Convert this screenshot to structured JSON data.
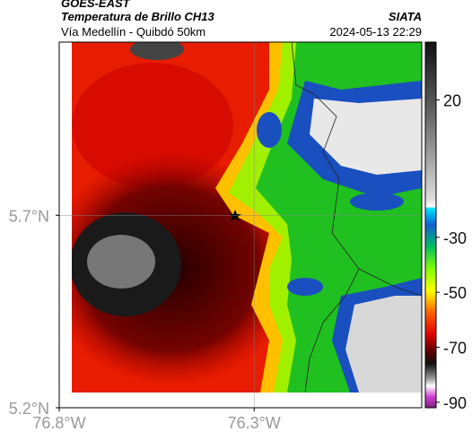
{
  "header": {
    "title": "GOES-EAST",
    "subtitle": "Temperatura de Brillo CH13",
    "source": "SIATA",
    "location": "Vía Medellín - Quibdó 50km",
    "datetime": "2024-05-13 22:29"
  },
  "map": {
    "xlim": [
      -76.8,
      -75.87
    ],
    "ylim": [
      5.2,
      6.15
    ],
    "xticks": [
      {
        "value": -76.8,
        "label": "76.8°W"
      },
      {
        "value": -76.3,
        "label": "76.3°W"
      }
    ],
    "yticks": [
      {
        "value": 5.2,
        "label": "5.2°N"
      },
      {
        "value": 5.7,
        "label": "5.7°N"
      }
    ],
    "grid": true
  },
  "colorbar": {
    "lim": [
      -92,
      41
    ],
    "ticks": [
      20,
      -30,
      -50,
      -70,
      -90
    ]
  }
}
